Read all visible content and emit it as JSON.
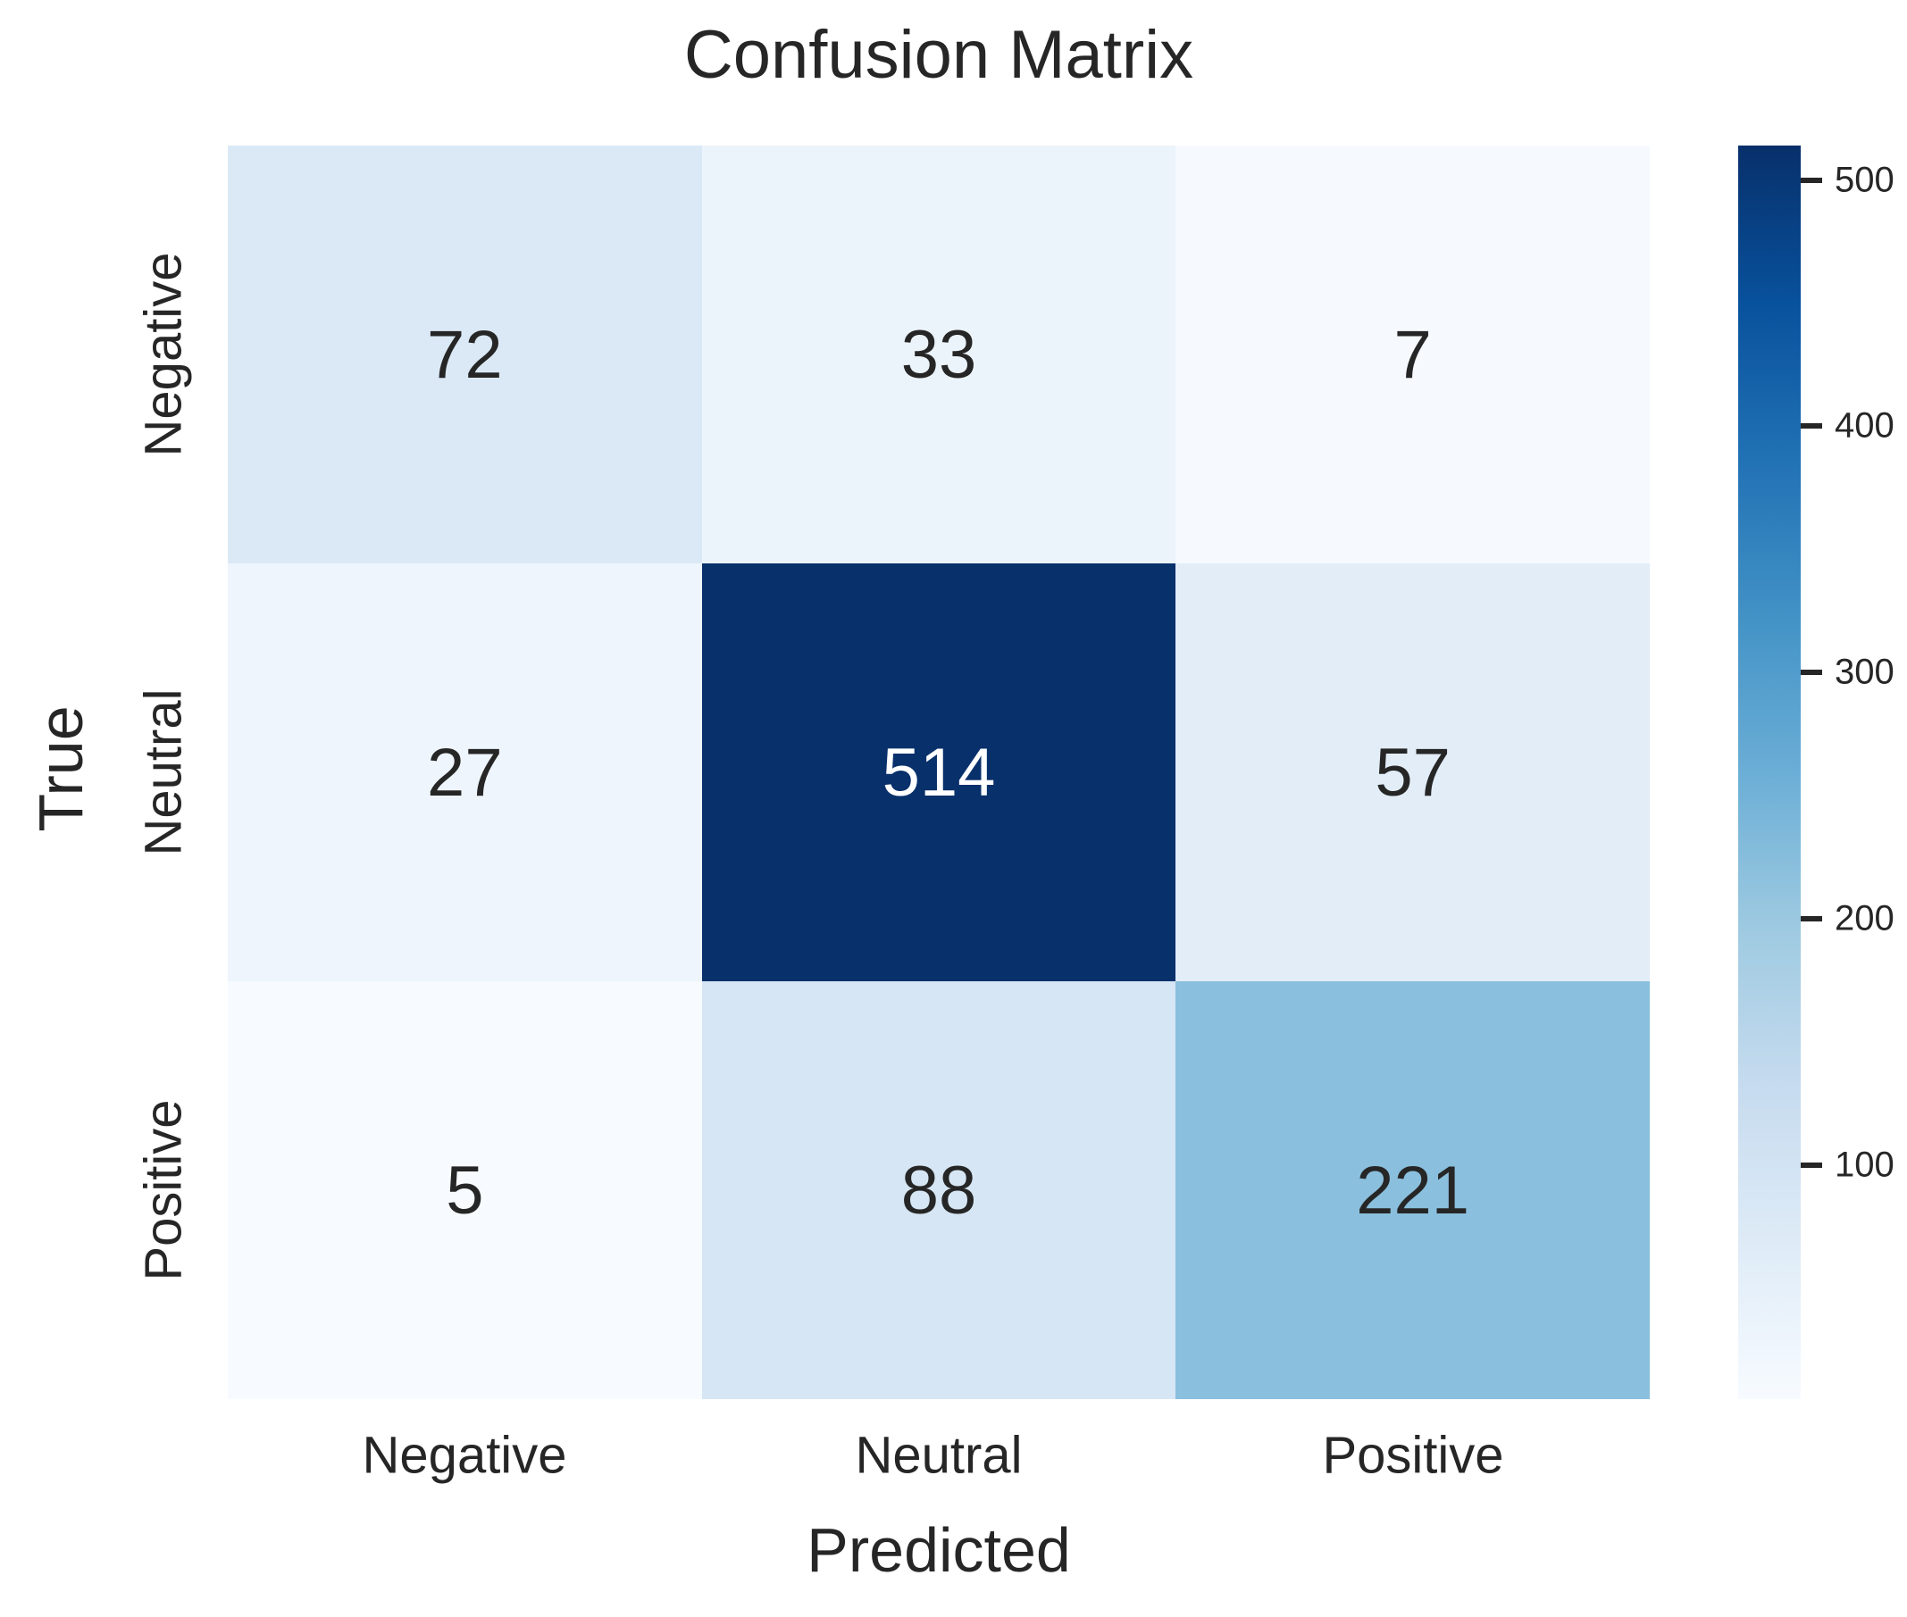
{
  "chart_data": {
    "type": "heatmap",
    "title": "Confusion Matrix",
    "xlabel": "Predicted",
    "ylabel": "True",
    "x_categories": [
      "Negative",
      "Neutral",
      "Positive"
    ],
    "y_categories": [
      "Negative",
      "Neutral",
      "Positive"
    ],
    "matrix": [
      [
        72,
        33,
        7
      ],
      [
        27,
        514,
        57
      ],
      [
        5,
        88,
        221
      ]
    ],
    "cell_colors": [
      [
        "#dbe9f6",
        "#ecf4fb",
        "#f6fafe"
      ],
      [
        "#eef5fc",
        "#08306b",
        "#e2edf8"
      ],
      [
        "#f7fbff",
        "#d6e6f4",
        "#8abfdd"
      ]
    ],
    "cell_text_colors": [
      [
        "#262626",
        "#262626",
        "#262626"
      ],
      [
        "#262626",
        "#ffffff",
        "#262626"
      ],
      [
        "#262626",
        "#262626",
        "#262626"
      ]
    ],
    "colorbar": {
      "vmin": 5,
      "vmax": 514,
      "ticks": [
        100,
        200,
        300,
        400,
        500
      ],
      "gradient_top_color": "#08306b",
      "gradient_bottom_color": "#f7fbff"
    },
    "layout": {
      "grid_on": false,
      "colormap": "Blues",
      "legend_position": "right-colorbar"
    }
  }
}
